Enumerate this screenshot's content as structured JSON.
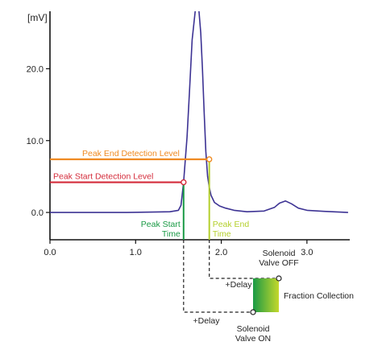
{
  "chart_data": {
    "type": "line",
    "title": "",
    "xlabel": "",
    "ylabel": "[mV]",
    "xlim": [
      0,
      3.5
    ],
    "ylim": [
      -3.8,
      28
    ],
    "xticks": [
      0.0,
      1.0,
      2.0,
      3.0
    ],
    "xtick_labels": [
      "0.0",
      "1.0",
      "2.0",
      "3.0"
    ],
    "yticks": [
      0.0,
      10.0,
      20.0
    ],
    "ytick_labels": [
      "0.0",
      "10.0",
      "20.0"
    ],
    "grid": false,
    "series": [
      {
        "color": "#3d3394",
        "x": [
          0.0,
          0.3,
          0.6,
          0.9,
          1.2,
          1.4,
          1.5,
          1.53,
          1.56,
          1.6,
          1.63,
          1.66,
          1.7,
          1.72,
          1.74,
          1.76,
          1.78,
          1.8,
          1.82,
          1.84,
          1.86,
          1.88,
          1.92,
          1.98,
          2.05,
          2.15,
          2.3,
          2.5,
          2.62,
          2.68,
          2.75,
          2.82,
          2.9,
          3.0,
          3.2,
          3.48
        ],
        "y": [
          0.0,
          0.0,
          0.0,
          0.0,
          0.05,
          0.1,
          0.3,
          1.0,
          4.2,
          10.5,
          17.0,
          24.0,
          28.5,
          28.5,
          28.0,
          25.0,
          20.0,
          14.0,
          8.5,
          5.0,
          3.5,
          2.4,
          1.4,
          0.9,
          0.6,
          0.3,
          0.1,
          0.2,
          0.7,
          1.3,
          1.6,
          1.2,
          0.6,
          0.3,
          0.15,
          0.0
        ]
      }
    ],
    "levels": [
      {
        "name": "start",
        "label": "Peak Start Detection Level",
        "y": 4.2,
        "x_end": 1.56,
        "color": "#d42b3a"
      },
      {
        "name": "end",
        "label": "Peak End Detection Level",
        "y": 7.4,
        "x_end": 1.86,
        "color": "#ef8a22"
      }
    ],
    "markers": [
      {
        "name": "peak-start",
        "x": 1.56,
        "label_lines": [
          "Peak Start",
          "Time"
        ],
        "color": "#1a9a45"
      },
      {
        "name": "peak-end",
        "x": 1.86,
        "label_lines": [
          "Peak End",
          "Time"
        ],
        "color": "#b4cf2c"
      }
    ],
    "annotations": {
      "delay_on": "+Delay",
      "delay_off": "+Delay",
      "valve_off": [
        "Solenoid",
        "Valve OFF"
      ],
      "valve_on": [
        "Solenoid",
        "Valve ON"
      ],
      "fraction": "Fraction Collection"
    },
    "colors": {
      "axis": "#111111",
      "trace": "#3d3394",
      "fraction_top": "#1a9a45",
      "fraction_bottom": "#c4d82c"
    }
  }
}
